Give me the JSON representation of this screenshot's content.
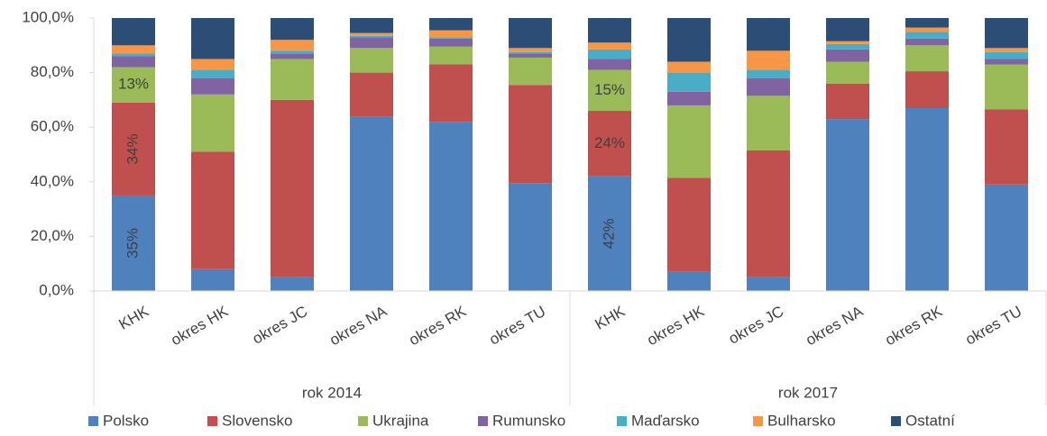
{
  "chart_data": {
    "type": "stacked_bar",
    "categories": [
      "KHK",
      "okres HK",
      "okres JC",
      "okres NA",
      "okres RK",
      "okres TU",
      "KHK",
      "okres HK",
      "okres JC",
      "okres NA",
      "okres RK",
      "okres TU"
    ],
    "groups": [
      "rok 2014",
      "rok 2017"
    ],
    "series": [
      {
        "name": "Polsko",
        "color": "#4f81bd",
        "values": [
          35,
          8,
          5,
          64,
          62,
          39.5,
          42,
          7,
          5,
          63,
          67,
          39
        ],
        "value_labels": [
          "35%",
          null,
          null,
          null,
          null,
          null,
          "42%",
          null,
          null,
          null,
          null,
          null
        ]
      },
      {
        "name": "Slovensko",
        "color": "#c0504d",
        "values": [
          34,
          43,
          65,
          16,
          21,
          36,
          24,
          34.5,
          46.5,
          13,
          13.5,
          27.5
        ],
        "value_labels": [
          "34%",
          null,
          null,
          null,
          null,
          null,
          "24%",
          null,
          null,
          null,
          null,
          null
        ]
      },
      {
        "name": "Ukrajina",
        "color": "#9bbb59",
        "values": [
          13,
          21,
          15,
          9,
          6.5,
          10,
          15,
          26.5,
          20,
          8,
          9.5,
          16.5
        ],
        "value_labels": [
          "13%",
          null,
          null,
          null,
          null,
          null,
          "15%",
          null,
          null,
          null,
          null,
          null
        ]
      },
      {
        "name": "Rumunsko",
        "color": "#8064a2",
        "values": [
          4,
          6,
          2,
          4,
          3,
          1.5,
          4,
          5,
          6.5,
          4.5,
          2.5,
          2
        ]
      },
      {
        "name": "Maďarsko",
        "color": "#4bacc6",
        "values": [
          1,
          3,
          1,
          0.5,
          0.5,
          0.5,
          3.5,
          7,
          3,
          2,
          2.5,
          2.5
        ]
      },
      {
        "name": "Bulharsko",
        "color": "#f79646",
        "values": [
          3,
          4,
          4,
          1,
          2.5,
          1.5,
          2.5,
          4,
          7,
          1,
          1.5,
          1.5
        ]
      },
      {
        "name": "Ostatní",
        "color": "#2c4d75",
        "values": [
          10,
          15,
          8,
          5.5,
          4.5,
          11,
          9,
          16,
          12,
          8.5,
          3.5,
          11
        ]
      }
    ],
    "ylim": [
      0,
      100
    ],
    "yticks": [
      {
        "value": 0,
        "label": "0,0%"
      },
      {
        "value": 20,
        "label": "20,0%"
      },
      {
        "value": 40,
        "label": "40,0%"
      },
      {
        "value": 60,
        "label": "60,0%"
      },
      {
        "value": 80,
        "label": "80,0%"
      },
      {
        "value": 100,
        "label": "100,0%"
      }
    ],
    "grid": false
  }
}
